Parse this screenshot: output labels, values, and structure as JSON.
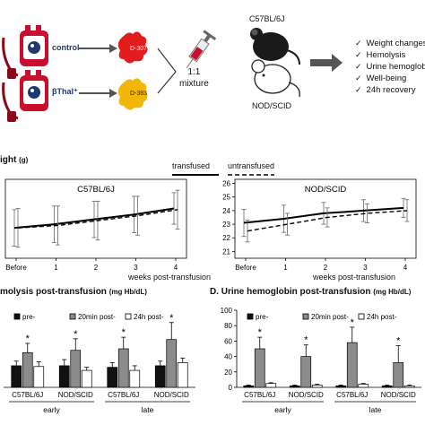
{
  "top_panel": {
    "blood_bag_labels": [
      "control",
      "βThal⁺"
    ],
    "dye_labels": [
      "D-307",
      "D-383"
    ],
    "mixture_label": "1:1\nmixture",
    "mouse_strains": [
      "C57BL/6J",
      "NOD/SCID"
    ],
    "outcomes": [
      "Weight changes",
      "Hemolysis",
      "Urine hemoglobin",
      "Well-being",
      "24h recovery"
    ],
    "colors": {
      "dye_red": "#e11d1d",
      "dye_yellow": "#f2b705",
      "bag_red": "#c8102e",
      "blood_dark": "#8b0a1a",
      "drop_navy": "#1f3a6e"
    },
    "icons": [
      "blood-bag-icon",
      "dye-droplet-icon",
      "syringe-icon",
      "mouse-icon",
      "arrow-right-icon",
      "arrow-down-icon"
    ]
  },
  "weight_panel": {
    "title": "ight",
    "title_unit": "(g)",
    "legend": [
      "transfused",
      "untransfused"
    ],
    "xlabel": "weeks post-transfusion",
    "chart_data": [
      {
        "type": "line",
        "title": "C57BL/6J",
        "categories": [
          "Before",
          "1",
          "2",
          "3",
          "4"
        ],
        "series": [
          {
            "name": "transfused",
            "values": [
              23.0,
              23.3,
              23.7,
              24.1,
              24.6
            ],
            "error": [
              1.5,
              1.5,
              1.5,
              1.5,
              1.3
            ]
          },
          {
            "name": "untransfused",
            "values": [
              23.0,
              23.2,
              23.6,
              24.0,
              24.5
            ],
            "error": [
              1.6,
              1.6,
              1.6,
              1.6,
              1.6
            ]
          }
        ],
        "ylim": [
          20.5,
          27
        ]
      },
      {
        "type": "line",
        "title": "NOD/SCID",
        "categories": [
          "Before",
          "1",
          "2",
          "3",
          "4"
        ],
        "yticks": [
          "21",
          "22",
          "23",
          "24",
          "25",
          "26"
        ],
        "series": [
          {
            "name": "transfused",
            "values": [
              23.1,
              23.4,
              23.8,
              24.0,
              24.2
            ],
            "error": [
              1.0,
              1.0,
              0.8,
              0.8,
              0.7
            ]
          },
          {
            "name": "untransfused",
            "values": [
              22.5,
              23.0,
              23.5,
              23.8,
              24.0
            ],
            "error": [
              0.8,
              0.8,
              0.7,
              0.7,
              0.8
            ]
          }
        ],
        "ylim": [
          20.5,
          26.3
        ]
      }
    ]
  },
  "hemolysis_panel": {
    "title": "molysis post-transfusion",
    "title_unit": "(mg Hb/dL)",
    "legend": [
      "pre-",
      "20min post-",
      "24h post-"
    ],
    "chart_data": {
      "type": "bar",
      "categories": [
        "C57BL/6J",
        "NOD/SCID",
        "C57BL/6J",
        "NOD/SCID"
      ],
      "groups": [
        "early",
        "late"
      ],
      "series": [
        {
          "name": "pre-",
          "values": [
            28,
            28,
            26,
            28
          ],
          "error": [
            6,
            8,
            6,
            6
          ]
        },
        {
          "name": "20min post-",
          "values": [
            45,
            48,
            50,
            62
          ],
          "error": [
            12,
            15,
            15,
            22
          ]
        },
        {
          "name": "24h post-",
          "values": [
            27,
            22,
            22,
            32
          ],
          "error": [
            6,
            4,
            6,
            6
          ]
        }
      ],
      "significance": [
        "*",
        "*",
        "*",
        "*"
      ],
      "ylim": [
        0,
        100
      ]
    }
  },
  "urine_panel": {
    "title": "D. Urine hemoglobin post-transfusion",
    "title_unit": "(mg Hb/dL)",
    "legend": [
      "pre-",
      "20min post-",
      "24h post-"
    ],
    "chart_data": {
      "type": "bar",
      "categories": [
        "C57BL/6J",
        "NOD/SCID",
        "C57BL/6J",
        "NOD/SCID"
      ],
      "groups": [
        "early",
        "late"
      ],
      "yticks": [
        "0",
        "20",
        "40",
        "60",
        "80",
        "100"
      ],
      "series": [
        {
          "name": "pre-",
          "values": [
            2,
            2,
            2,
            2
          ],
          "error": [
            1,
            1,
            1,
            1
          ]
        },
        {
          "name": "20min post-",
          "values": [
            50,
            40,
            58,
            32
          ],
          "error": [
            15,
            15,
            20,
            22
          ]
        },
        {
          "name": "24h post-",
          "values": [
            5,
            3,
            4,
            2
          ],
          "error": [
            1,
            1,
            1,
            1
          ]
        }
      ],
      "significance": [
        "*",
        "*",
        "*",
        "*"
      ],
      "ylim": [
        0,
        100
      ]
    }
  }
}
